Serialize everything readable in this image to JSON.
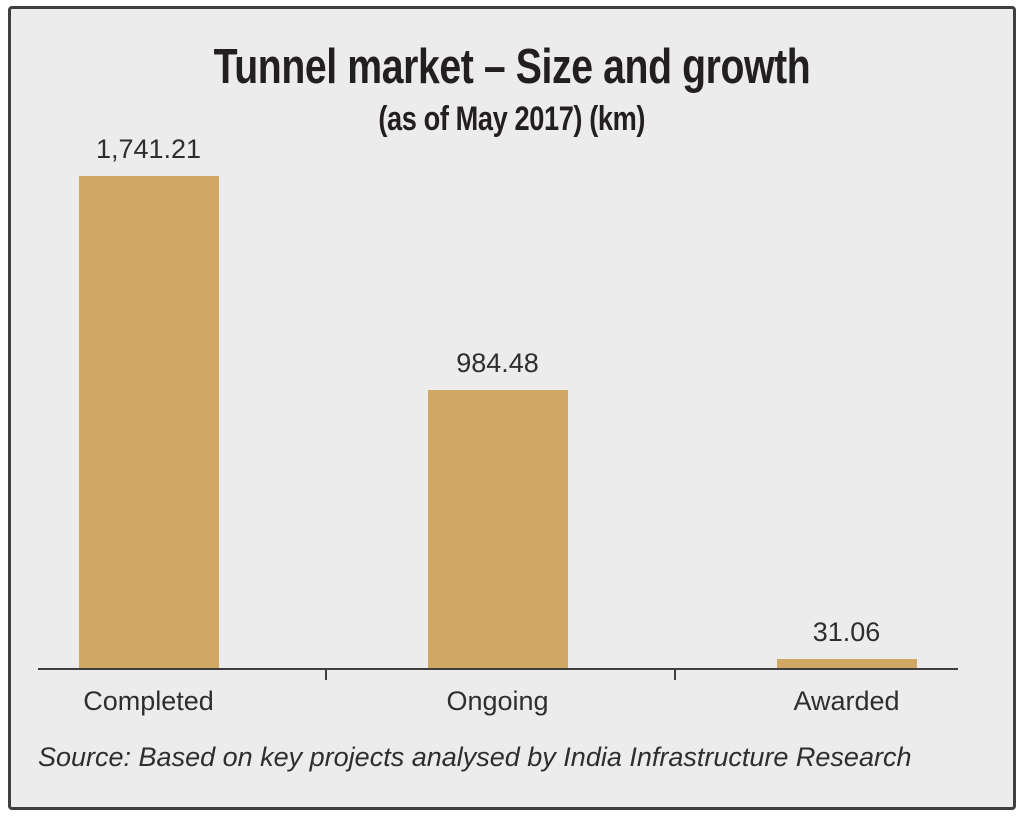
{
  "chart_data": {
    "type": "bar",
    "title": "Tunnel market – Size and growth",
    "subtitle": "(as of May 2017) (km)",
    "categories": [
      "Completed",
      "Ongoing",
      "Awarded"
    ],
    "values": [
      1741.21,
      984.48,
      31.06
    ],
    "value_labels": [
      "1,741.21",
      "984.48",
      "31.06"
    ],
    "xlabel": "",
    "ylabel": "",
    "ylim": [
      0,
      1741.21
    ],
    "grid": false,
    "legend": false,
    "source": "Source: Based on key projects analysed by India Infrastructure Research",
    "colors": {
      "bar": "#d1a863",
      "background": "#ececec",
      "border": "#3f3f3f",
      "text": "#231f20"
    }
  }
}
